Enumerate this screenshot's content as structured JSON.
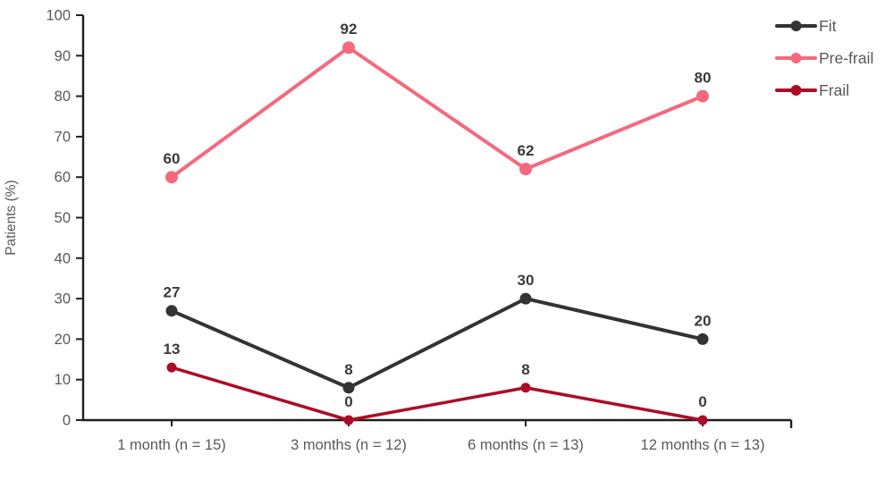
{
  "chart_data": {
    "type": "line",
    "title": "",
    "xlabel": "",
    "ylabel": "Patients (%)",
    "ylim": [
      0,
      100
    ],
    "ytick_step": 10,
    "grid": false,
    "data_labels": true,
    "legend_position": "top-right",
    "categories": [
      "1 month (n = 15)",
      "3 months (n = 12)",
      "6 months (n = 13)",
      "12 months (n = 13)"
    ],
    "series": [
      {
        "name": "Fit",
        "values": [
          27,
          8,
          30,
          20
        ],
        "color": "#333333",
        "marker_radius": 6.5,
        "line_width": 4
      },
      {
        "name": "Pre-frail",
        "values": [
          60,
          92,
          62,
          80
        ],
        "color": "#F4697E",
        "marker_radius": 7,
        "line_width": 4
      },
      {
        "name": "Frail",
        "values": [
          13,
          0,
          8,
          0
        ],
        "color": "#AD0C26",
        "marker_radius": 5.5,
        "line_width": 3.5
      }
    ]
  },
  "colors": {
    "axis": "#1F1F1F",
    "tick_label": "#595959",
    "category_label": "#595959",
    "legend_text": "#595959",
    "data_label": "#3B3B3B",
    "background": "#FFFFFF"
  }
}
